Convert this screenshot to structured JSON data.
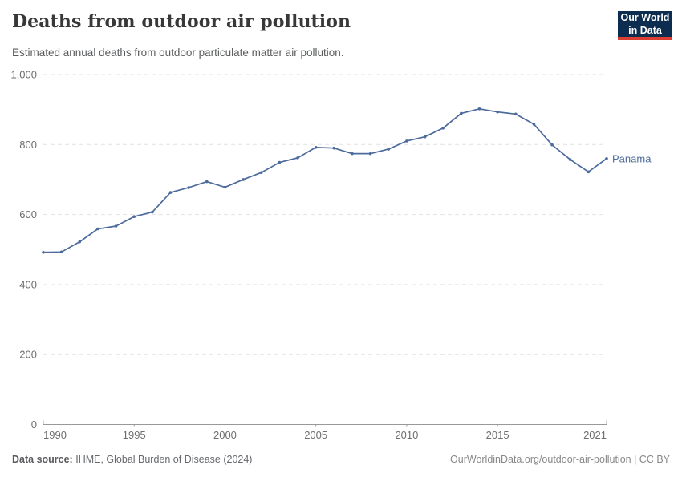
{
  "header": {
    "title": "Deaths from outdoor air pollution",
    "subtitle": "Estimated annual deaths from outdoor particulate matter air pollution.",
    "logo": {
      "line1": "Our World",
      "line2": "in Data"
    }
  },
  "colors": {
    "line": "#4c6a9c",
    "logo_bg": "#0c2d4f",
    "logo_bar": "#dc3e32",
    "gridline": "#e2e2e2",
    "axis": "#999999",
    "tick_text": "#6e6e6e"
  },
  "chart_data": {
    "type": "line",
    "title": "Deaths from outdoor air pollution",
    "subtitle": "Estimated annual deaths from outdoor particulate matter air pollution.",
    "xlabel": "",
    "ylabel": "",
    "xlim": [
      1990,
      2021
    ],
    "ylim": [
      0,
      1000
    ],
    "grid": true,
    "point_markers": true,
    "legend_position": "end-of-line-label",
    "xticks": [
      1990,
      1995,
      2000,
      2005,
      2010,
      2015,
      2021
    ],
    "yticks": [
      0,
      200,
      400,
      600,
      800,
      1000
    ],
    "ytick_labels": [
      "0",
      "200",
      "400",
      "600",
      "800",
      "1,000"
    ],
    "x": [
      1990,
      1991,
      1992,
      1993,
      1994,
      1995,
      1996,
      1997,
      1998,
      1999,
      2000,
      2001,
      2002,
      2003,
      2004,
      2005,
      2006,
      2007,
      2008,
      2009,
      2010,
      2011,
      2012,
      2013,
      2014,
      2015,
      2016,
      2017,
      2018,
      2019,
      2020,
      2021
    ],
    "series": [
      {
        "name": "Panama",
        "color": "#4c6a9c",
        "values": [
          492,
          493,
          522,
          559,
          567,
          594,
          607,
          663,
          677,
          694,
          678,
          700,
          720,
          749,
          762,
          792,
          790,
          774,
          774,
          787,
          810,
          822,
          847,
          889,
          902,
          893,
          887,
          858,
          799,
          757,
          722,
          760
        ]
      }
    ]
  },
  "footer": {
    "source_label": "Data source:",
    "source_value": "IHME, Global Burden of Disease (2024)",
    "credit": "OurWorldinData.org/outdoor-air-pollution | CC BY"
  }
}
